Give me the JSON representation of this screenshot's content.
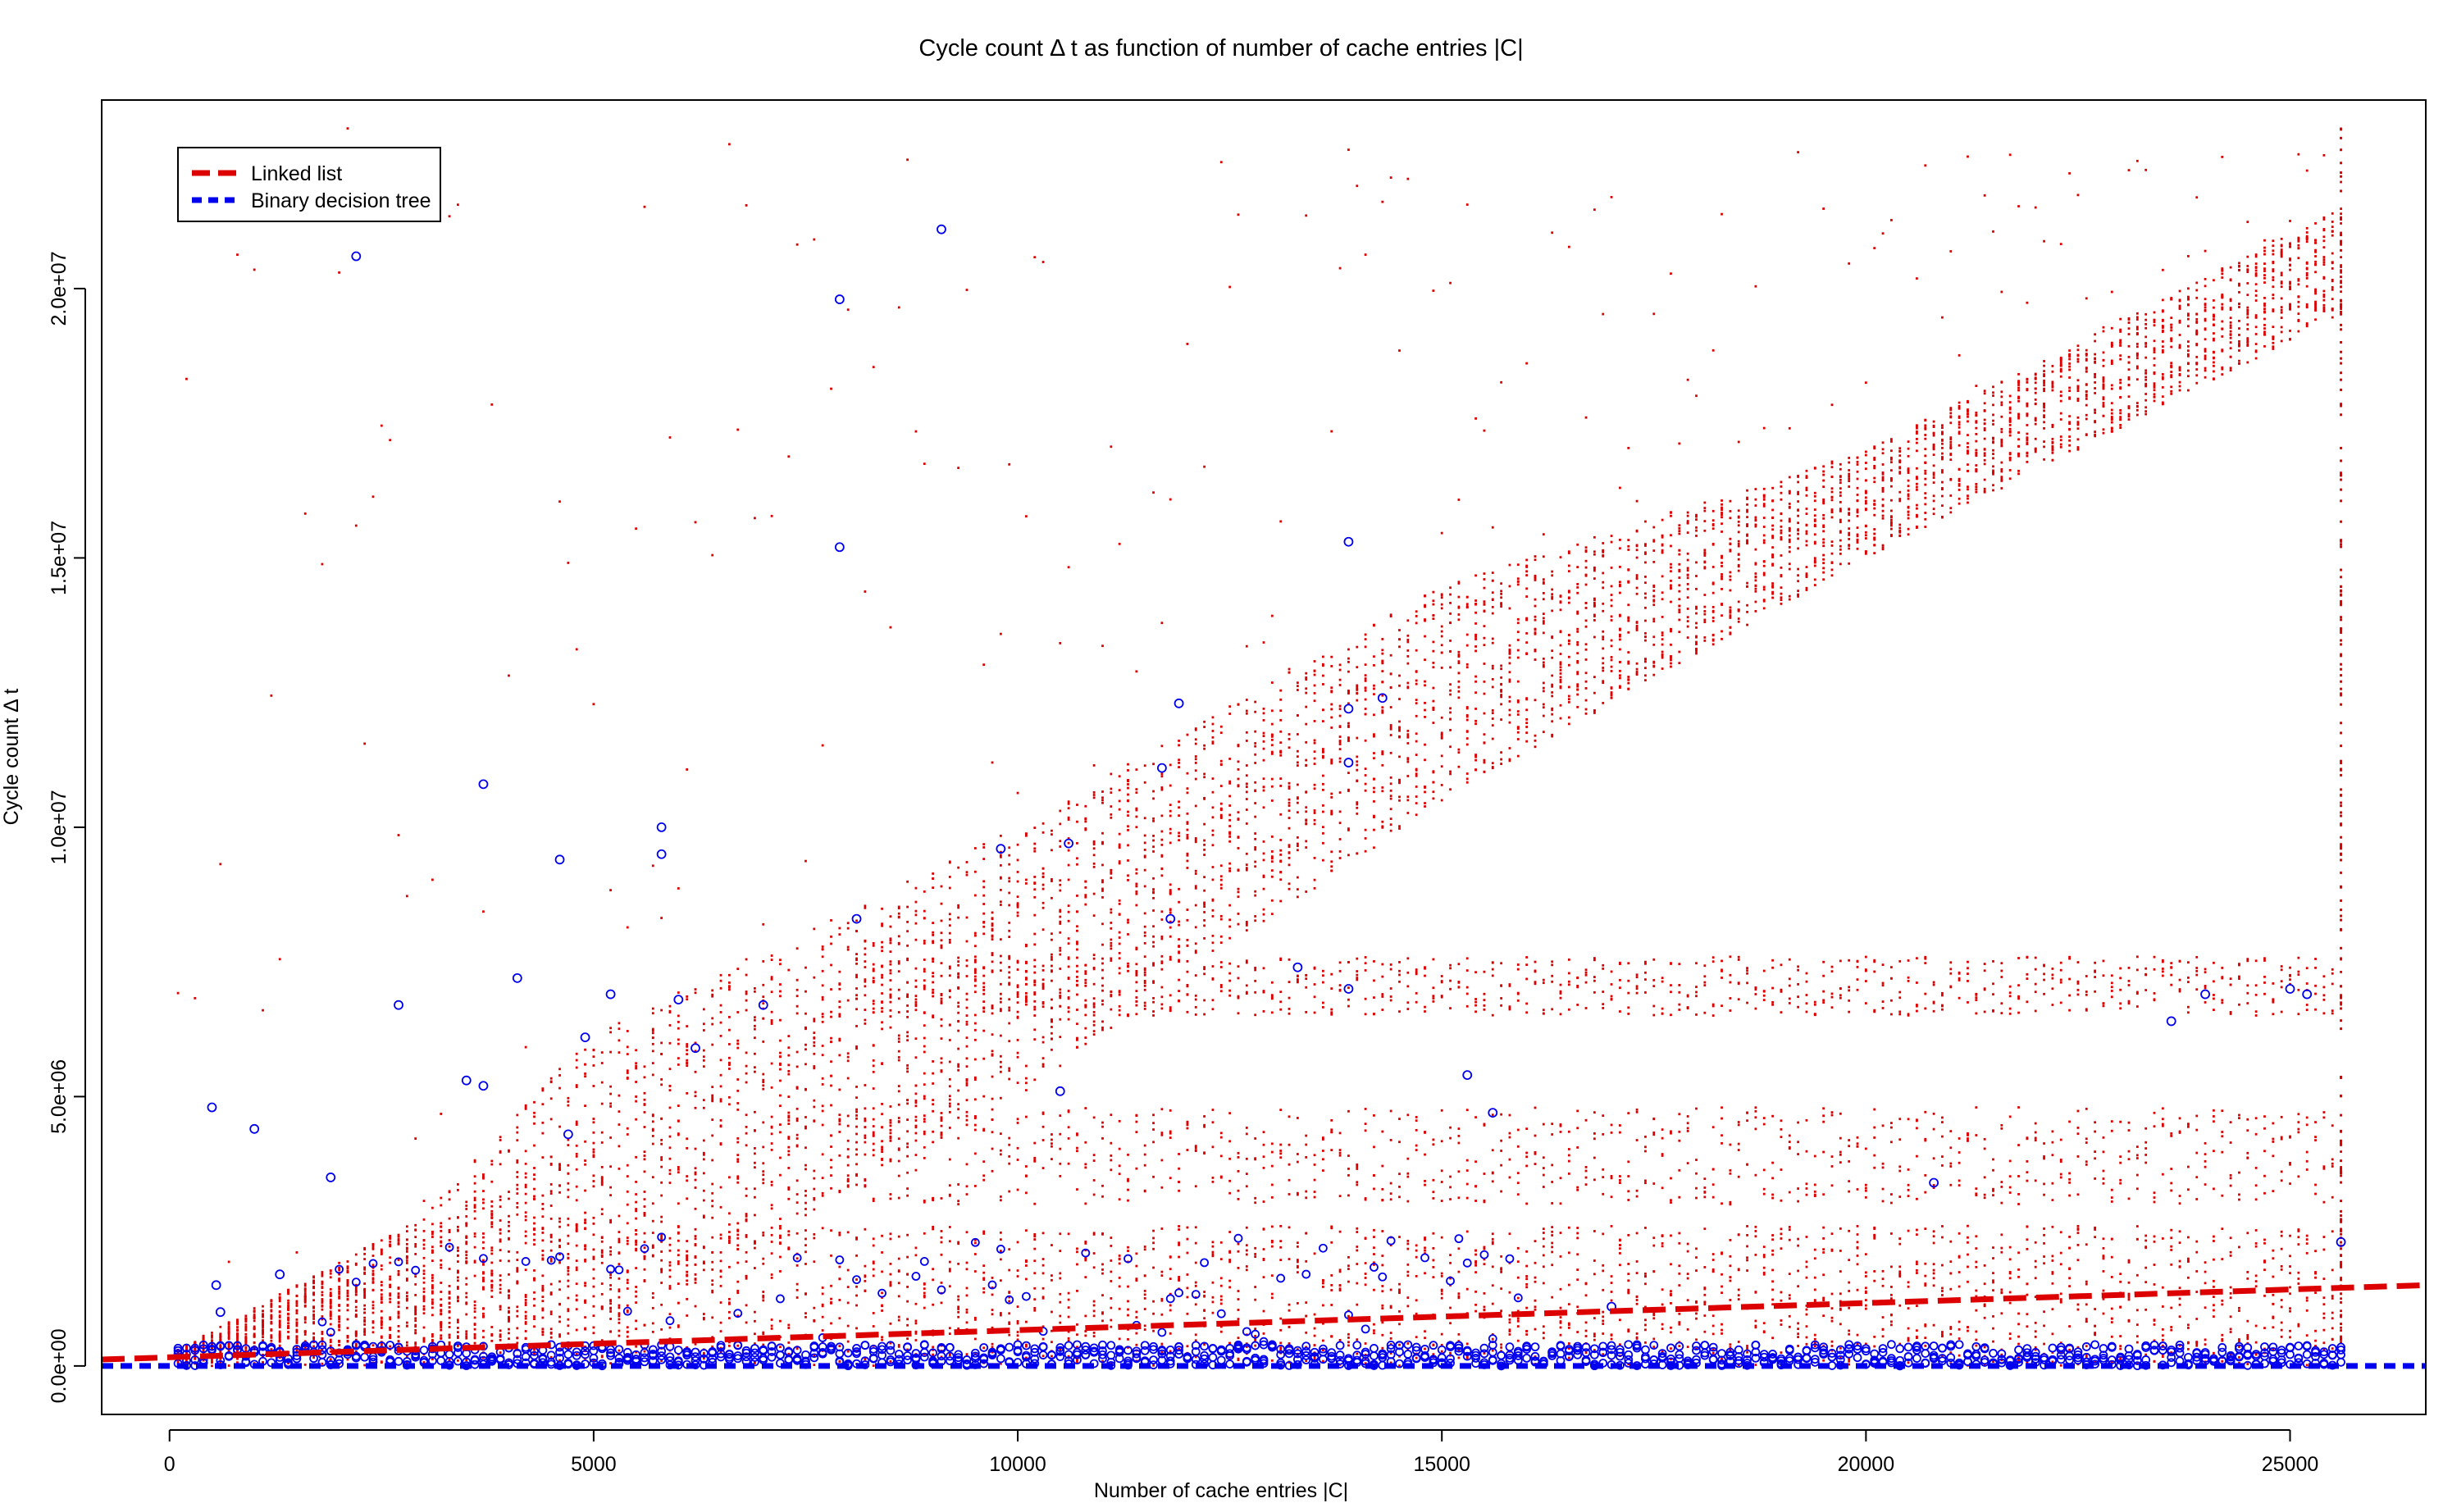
{
  "chart_data": {
    "type": "scatter",
    "title": "Cycle count Δ t as function of number of cache entries |C|",
    "xlabel": "Number of cache entries |C|",
    "ylabel": "Cycle count Δ t",
    "xlim": [
      -800,
      26600
    ],
    "ylim": [
      -900000,
      23500000
    ],
    "x_ticks": [
      0,
      5000,
      10000,
      15000,
      20000,
      25000
    ],
    "x_tick_labels": [
      "0",
      "5000",
      "10000",
      "15000",
      "20000",
      "25000"
    ],
    "y_ticks": [
      0,
      5000000,
      10000000,
      15000000,
      20000000
    ],
    "y_tick_labels": [
      "0.0e+00",
      "5.0e+06",
      "1.0e+07",
      "1.5e+07",
      "2.0e+07"
    ],
    "grid": false,
    "legend_position": "top-left",
    "legend": [
      {
        "label": "Linked list",
        "color": "#dd0000",
        "style": "dashed"
      },
      {
        "label": "Binary decision tree",
        "color": "#0000ee",
        "style": "dashed"
      }
    ],
    "series": [
      {
        "name": "Linked list",
        "color": "#dd0000",
        "marker": "dot",
        "x_range": [
          100,
          25600
        ],
        "main_band": [
          [
            100,
            100000,
            300000
          ],
          [
            3000,
            300000,
            2800000
          ],
          [
            5000,
            600000,
            6200000
          ],
          [
            10000,
            5000000,
            10000000
          ],
          [
            15000,
            10500000,
            14500000
          ],
          [
            20000,
            15000000,
            17000000
          ],
          [
            25600,
            19500000,
            21500000
          ]
        ],
        "secondary_bands": [
          [
            3000000,
            4800000
          ],
          [
            6500000,
            7600000
          ]
        ],
        "fit_line": [
          [
            -800,
            120000
          ],
          [
            26600,
            1500000
          ]
        ]
      },
      {
        "name": "Binary decision tree",
        "color": "#0000ee",
        "marker": "circle",
        "x_range": [
          100,
          25600
        ],
        "main_band": [
          0,
          400000
        ],
        "outliers": [
          [
            500,
            4800000
          ],
          [
            550,
            1500000
          ],
          [
            600,
            1000000
          ],
          [
            1000,
            4400000
          ],
          [
            1300,
            1700000
          ],
          [
            1900,
            3500000
          ],
          [
            2200,
            20600000
          ],
          [
            2700,
            6700000
          ],
          [
            3500,
            5300000
          ],
          [
            3700,
            5200000
          ],
          [
            3700,
            10800000
          ],
          [
            4100,
            7200000
          ],
          [
            4600,
            9400000
          ],
          [
            4700,
            4300000
          ],
          [
            4900,
            6100000
          ],
          [
            5200,
            6900000
          ],
          [
            5800,
            10000000
          ],
          [
            5800,
            9500000
          ],
          [
            6000,
            6800000
          ],
          [
            6200,
            5900000
          ],
          [
            7000,
            6700000
          ],
          [
            7900,
            19800000
          ],
          [
            7900,
            15200000
          ],
          [
            8100,
            8300000
          ],
          [
            9100,
            21100000
          ],
          [
            9800,
            9600000
          ],
          [
            10500,
            5100000
          ],
          [
            10600,
            9700000
          ],
          [
            11700,
            11100000
          ],
          [
            11800,
            8300000
          ],
          [
            11900,
            12300000
          ],
          [
            13300,
            7400000
          ],
          [
            13900,
            15300000
          ],
          [
            13900,
            12200000
          ],
          [
            13900,
            11200000
          ],
          [
            13900,
            7000000
          ],
          [
            14300,
            12400000
          ],
          [
            15300,
            5400000
          ],
          [
            15600,
            4700000
          ],
          [
            17000,
            1100000
          ],
          [
            20800,
            3400000
          ],
          [
            23600,
            6400000
          ],
          [
            24000,
            6900000
          ],
          [
            25000,
            7000000
          ],
          [
            25200,
            6900000
          ],
          [
            25600,
            2300000
          ]
        ],
        "fit_line": [
          [
            -800,
            0
          ],
          [
            26600,
            0
          ]
        ]
      }
    ]
  }
}
